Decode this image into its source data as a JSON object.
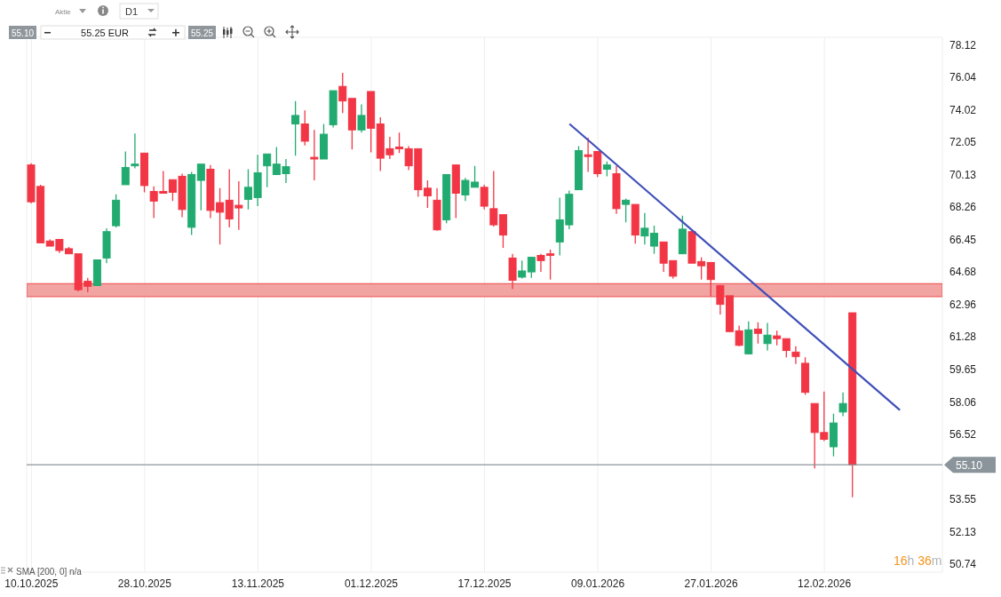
{
  "chart_data": {
    "type": "candlestick",
    "categories": [
      "10.10.2025",
      null,
      null,
      null,
      null,
      null,
      null,
      null,
      null,
      null,
      null,
      null,
      "28.10.2025",
      null,
      null,
      null,
      null,
      null,
      null,
      null,
      null,
      null,
      null,
      null,
      "13.11.2025",
      null,
      null,
      null,
      null,
      null,
      null,
      null,
      null,
      null,
      null,
      null,
      "01.12.2025",
      null,
      null,
      null,
      null,
      null,
      null,
      null,
      null,
      null,
      null,
      null,
      "17.12.2025",
      null,
      null,
      null,
      null,
      null,
      null,
      null,
      null,
      null,
      null,
      null,
      "09.01.2026",
      null,
      null,
      null,
      null,
      null,
      null,
      null,
      null,
      null,
      null,
      null,
      "27.01.2026",
      null,
      null,
      null,
      null,
      null,
      null,
      null,
      null,
      null,
      null,
      null,
      "12.02.2026",
      null,
      null,
      null,
      null,
      null,
      null,
      null,
      null,
      null,
      null,
      null,
      null
    ],
    "ohlc": [
      [
        70.69,
        70.79,
        68.46,
        68.56
      ],
      [
        69.44,
        69.54,
        66.26,
        66.26
      ],
      [
        66.36,
        66.45,
        66.08,
        66.08
      ],
      [
        66.45,
        66.45,
        65.7,
        65.84
      ],
      [
        65.94,
        66.03,
        65.66,
        65.66
      ],
      [
        65.66,
        65.66,
        63.64,
        63.73
      ],
      [
        64.18,
        64.36,
        63.59,
        63.91
      ],
      [
        63.95,
        65.33,
        63.95,
        65.33
      ],
      [
        65.43,
        67.07,
        65.15,
        66.88
      ],
      [
        67.21,
        68.99,
        67.12,
        68.65
      ],
      [
        69.54,
        71.49,
        69.54,
        70.54
      ],
      [
        70.64,
        72.57,
        70.49,
        70.74
      ],
      [
        71.39,
        71.39,
        69.1,
        69.49
      ],
      [
        69.15,
        69.44,
        67.64,
        68.6
      ],
      [
        69.15,
        70.33,
        69.05,
        69.05
      ],
      [
        69.83,
        69.83,
        68.6,
        69.1
      ],
      [
        70.03,
        70.18,
        67.69,
        68.12
      ],
      [
        67.12,
        70.28,
        66.69,
        70.13
      ],
      [
        69.79,
        70.74,
        68.07,
        70.74
      ],
      [
        70.44,
        70.69,
        67.64,
        68.07
      ],
      [
        68.51,
        69.34,
        66.17,
        67.97
      ],
      [
        68.65,
        70.44,
        67.12,
        67.59
      ],
      [
        68.36,
        69.74,
        66.98,
        68.21
      ],
      [
        68.7,
        70.44,
        68.12,
        69.39
      ],
      [
        68.8,
        71.29,
        68.31,
        70.23
      ],
      [
        70.64,
        71.34,
        69.39,
        71.34
      ],
      [
        70.13,
        71.75,
        70.13,
        70.74
      ],
      [
        70.18,
        71.04,
        69.64,
        70.59
      ],
      [
        73.14,
        74.55,
        71.24,
        73.66
      ],
      [
        73.14,
        73.97,
        71.85,
        72.1
      ],
      [
        71.14,
        72.78,
        69.79,
        71.04
      ],
      [
        71.04,
        73.14,
        71.04,
        72.52
      ],
      [
        73.09,
        75.19,
        72.93,
        75.19
      ],
      [
        75.46,
        76.31,
        73.81,
        74.55
      ],
      [
        74.71,
        74.71,
        71.6,
        72.78
      ],
      [
        72.78,
        74.34,
        72.62,
        73.66
      ],
      [
        75.14,
        75.14,
        71.44,
        72.88
      ],
      [
        73.14,
        73.55,
        70.33,
        71.09
      ],
      [
        71.65,
        72.36,
        71.04,
        71.29
      ],
      [
        71.75,
        72.62,
        71.39,
        71.65
      ],
      [
        71.65,
        71.8,
        70.39,
        70.64
      ],
      [
        71.65,
        71.65,
        68.85,
        69.25
      ],
      [
        69.34,
        69.79,
        68.21,
        68.9
      ],
      [
        68.65,
        69.34,
        66.93,
        66.98
      ],
      [
        67.54,
        70.13,
        67.35,
        70.13
      ],
      [
        70.69,
        70.69,
        67.64,
        69.05
      ],
      [
        68.95,
        69.93,
        68.6,
        69.79
      ],
      [
        69.39,
        70.64,
        69.39,
        69.69
      ],
      [
        69.39,
        69.54,
        68.12,
        68.31
      ],
      [
        68.17,
        70.33,
        67.16,
        67.26
      ],
      [
        67.83,
        67.83,
        65.98,
        66.69
      ],
      [
        65.43,
        65.66,
        63.77,
        64.23
      ],
      [
        64.4,
        65.29,
        64.32,
        64.73
      ],
      [
        64.68,
        65.47,
        64.36,
        65.47
      ],
      [
        65.57,
        65.66,
        64.68,
        65.29
      ],
      [
        65.66,
        65.89,
        64.27,
        65.57
      ],
      [
        66.31,
        68.8,
        65.57,
        67.54
      ],
      [
        67.26,
        69.2,
        67.02,
        68.99
      ],
      [
        69.25,
        71.8,
        69.25,
        71.54
      ],
      [
        71.29,
        72.31,
        70.28,
        71.19
      ],
      [
        71.49,
        71.49,
        69.98,
        70.18
      ],
      [
        70.44,
        70.89,
        70.03,
        70.69
      ],
      [
        70.18,
        70.64,
        67.88,
        68.17
      ],
      [
        68.41,
        68.75,
        67.4,
        68.65
      ],
      [
        68.41,
        68.41,
        66.22,
        66.69
      ],
      [
        66.64,
        67.92,
        66.17,
        67.07
      ],
      [
        66.08,
        67.21,
        65.66,
        66.79
      ],
      [
        66.31,
        66.31,
        64.68,
        65.15
      ],
      [
        65.29,
        65.29,
        64.32,
        64.45
      ],
      [
        65.66,
        67.78,
        65.66,
        67.02
      ],
      [
        66.88,
        67.02,
        65.15,
        65.15
      ],
      [
        65.24,
        65.47,
        64.27,
        65.01
      ],
      [
        65.19,
        65.19,
        63.37,
        64.27
      ],
      [
        63.95,
        63.95,
        62.43,
        62.96
      ],
      [
        63.41,
        63.41,
        61.55,
        61.55
      ],
      [
        61.59,
        61.86,
        60.81,
        60.85
      ],
      [
        60.42,
        62.07,
        60.42,
        61.64
      ],
      [
        61.68,
        62.03,
        60.94,
        61.46
      ],
      [
        60.94,
        61.99,
        60.59,
        61.37
      ],
      [
        61.33,
        61.59,
        60.85,
        61.19
      ],
      [
        61.19,
        61.19,
        60.25,
        60.59
      ],
      [
        60.51,
        60.81,
        59.91,
        60.29
      ],
      [
        59.95,
        60.25,
        58.4,
        58.52
      ],
      [
        57.98,
        57.98,
        54.94,
        56.6
      ],
      [
        56.6,
        58.56,
        56.2,
        56.28
      ],
      [
        55.93,
        57.49,
        55.49,
        57.05
      ],
      [
        57.57,
        58.52,
        57.37,
        57.98
      ],
      [
        62.52,
        62.52,
        53.63,
        55.1
      ],
      null,
      null,
      null,
      null,
      null,
      null,
      null,
      null,
      null
    ],
    "colors": [
      "#f23645",
      "#f23645",
      "#f23645",
      "#f23645",
      "#f23645",
      "#f23645",
      "#f23645",
      "#22ab70",
      "#22ab70",
      "#22ab70",
      "#22ab70",
      "#22ab70",
      "#f23645",
      "#f23645",
      "#f23645",
      "#f23645",
      "#f23645",
      "#22ab70",
      "#22ab70",
      "#f23645",
      "#f23645",
      "#f23645",
      "#f23645",
      "#22ab70",
      "#22ab70",
      "#22ab70",
      "#22ab70",
      "#22ab70",
      "#22ab70",
      "#f23645",
      "#f23645",
      "#22ab70",
      "#22ab70",
      "#f23645",
      "#f23645",
      "#22ab70",
      "#f23645",
      "#f23645",
      "#f23645",
      "#f23645",
      "#f23645",
      "#f23645",
      "#f23645",
      "#f23645",
      "#22ab70",
      "#f23645",
      "#22ab70",
      "#22ab70",
      "#f23645",
      "#f23645",
      "#f23645",
      "#f23645",
      "#22ab70",
      "#22ab70",
      "#f23645",
      "#f23645",
      "#22ab70",
      "#22ab70",
      "#22ab70",
      "#f23645",
      "#f23645",
      "#22ab70",
      "#f23645",
      "#22ab70",
      "#f23645",
      "#22ab70",
      "#22ab70",
      "#f23645",
      "#f23645",
      "#22ab70",
      "#f23645",
      "#f23645",
      "#f23645",
      "#f23645",
      "#f23645",
      "#f23645",
      "#22ab70",
      "#f23645",
      "#22ab70",
      "#f23645",
      "#f23645",
      "#f23645",
      "#f23645",
      "#f23645",
      "#f23645",
      "#22ab70",
      "#22ab70",
      "#f23645",
      null,
      null,
      null,
      null,
      null,
      null,
      null,
      null,
      null
    ],
    "series": [
      {
        "type": "line",
        "color": "#3f4fb8",
        "values": [
          null,
          null,
          null,
          null,
          null,
          null,
          null,
          null,
          null,
          null,
          null,
          null,
          null,
          null,
          null,
          null,
          null,
          null,
          null,
          null,
          null,
          null,
          null,
          null,
          null,
          null,
          null,
          null,
          null,
          null,
          null,
          null,
          null,
          null,
          null,
          null,
          null,
          null,
          null,
          null,
          null,
          null,
          null,
          null,
          null,
          null,
          null,
          null,
          null,
          null,
          null,
          null,
          null,
          null,
          null,
          null,
          null,
          73.14,
          null,
          null,
          null,
          null,
          null,
          null,
          null,
          null,
          null,
          null,
          null,
          null,
          null,
          null,
          null,
          null,
          null,
          null,
          null,
          null,
          null,
          null,
          null,
          null,
          null,
          null,
          null,
          null,
          null,
          null,
          null,
          null,
          null,
          null,
          57.66,
          null,
          null,
          null,
          null
        ]
      }
    ],
    "log": "y",
    "ylim": [
      50.4,
      78.6
    ],
    "yticks": [
      50.74,
      52.13,
      53.55,
      56.52,
      58.06,
      59.65,
      61.28,
      62.96,
      64.68,
      66.45,
      68.26,
      70.13,
      72.05,
      74.02,
      76.04,
      78.12
    ],
    "grid": true,
    "bands": [
      {
        "axis": "y",
        "from": 63.37,
        "to": 64.05,
        "color": "#f09a98"
      }
    ],
    "ref_lines": [
      {
        "axis": "y",
        "value": 55.1,
        "label": "55.10",
        "color": "#8a949a"
      }
    ],
    "annotations": [
      "Aktie",
      "D1",
      "55.10",
      "55.25 EUR",
      "55.25",
      "SMA [200, 0] n/a",
      "16h 36m"
    ]
  }
}
